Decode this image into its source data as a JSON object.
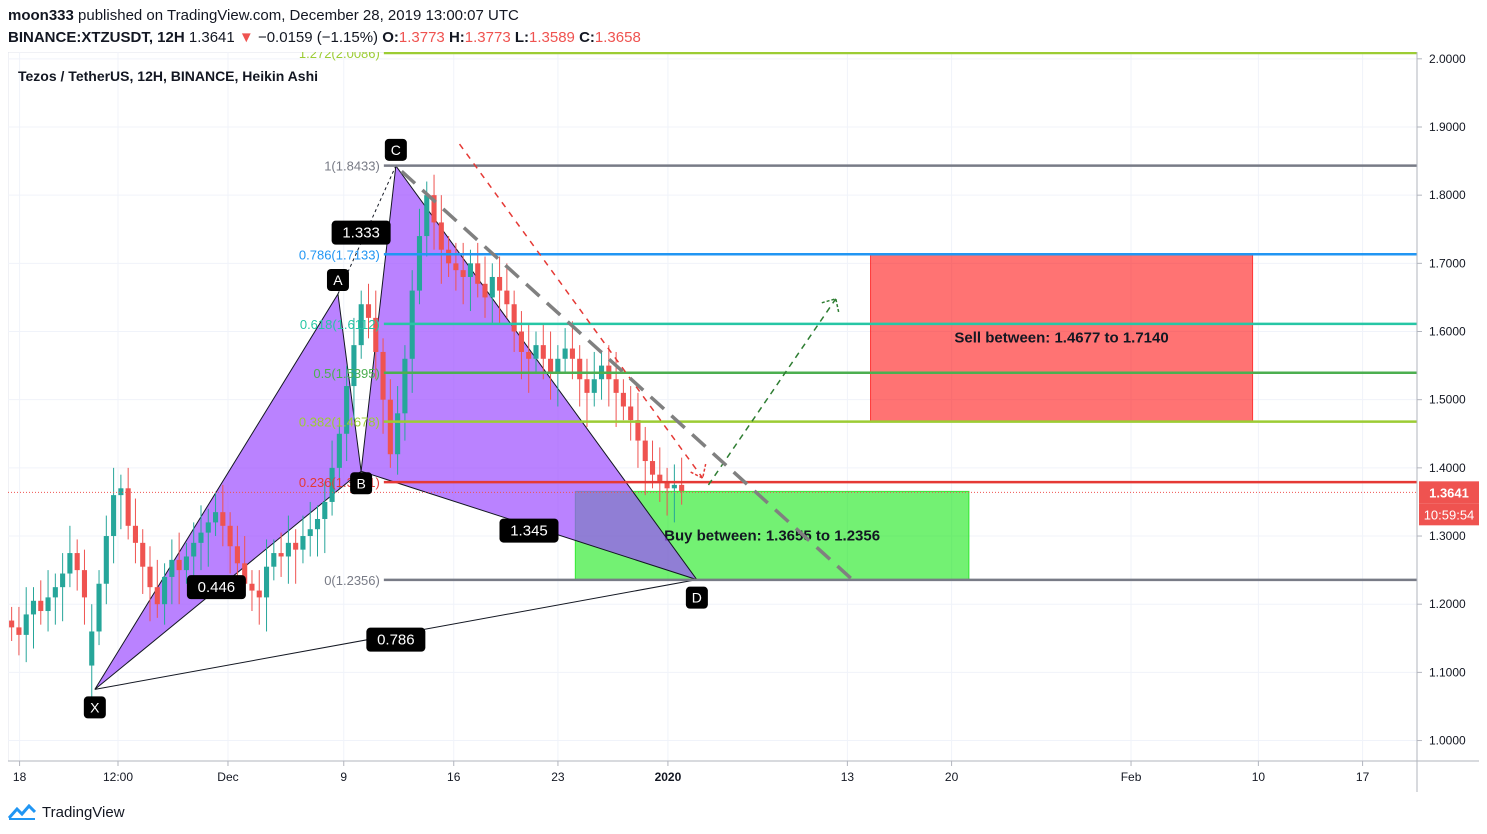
{
  "header": {
    "author": "moon333",
    "published_text": "published on TradingView.com, December 28, 2019 13:00:07 UTC",
    "symbol": "BINANCE:XTZUSDT, 12H",
    "price": "1.3641",
    "change_arrow": "▼",
    "change": "−0.0159 (−1.15%)",
    "o_label": "O:",
    "o_value": "1.3773",
    "h_label": "H:",
    "h_value": "1.3773",
    "l_label": "L:",
    "l_value": "1.3589",
    "c_label": "C:",
    "c_value": "1.3658"
  },
  "footer": {
    "brand": "TradingView"
  },
  "colors": {
    "up": "#26a69a",
    "down": "#ef5350",
    "harmonic_fill": "#9c4dff",
    "buy_zone": "#00e600",
    "sell_zone": "#ff0000"
  },
  "chart_data": {
    "type": "candlestick",
    "title": "Tezos / TetherUS, 12H, BINANCE, Heikin Ashi",
    "ylim": [
      0.97,
      2.01
    ],
    "x_ticks": [
      {
        "label": "18",
        "x": 0
      },
      {
        "label": "12:00",
        "x": 8.5
      },
      {
        "label": "Dec",
        "x": 18
      },
      {
        "label": "9",
        "x": 28
      },
      {
        "label": "16",
        "x": 37.5
      },
      {
        "label": "23",
        "x": 46.5
      },
      {
        "label": "2020",
        "x": 56
      },
      {
        "label": "13",
        "x": 71.5
      },
      {
        "label": "20",
        "x": 80.5
      },
      {
        "label": "Feb",
        "x": 96
      },
      {
        "label": "10",
        "x": 107
      },
      {
        "label": "17",
        "x": 116
      }
    ],
    "xlim": [
      -1,
      120.7
    ],
    "y_ticks": [
      "1.0000",
      "1.1000",
      "1.2000",
      "1.3000",
      "1.4000",
      "1.5000",
      "1.6000",
      "1.7000",
      "1.8000",
      "1.9000",
      "2.0000"
    ],
    "current_price": "1.3641",
    "countdown": "10:59:54",
    "fib_levels": [
      {
        "label": "0(1.2356)",
        "value": 1.2356,
        "color": "#787b86"
      },
      {
        "label": "0.236(1.3791)",
        "value": 1.3791,
        "color": "#f23645"
      },
      {
        "label": "0.382(1.4678)",
        "value": 1.4678,
        "color": "#81c784"
      },
      {
        "label": "0.5(1.5395)",
        "value": 1.5395,
        "color": "#4caf50"
      },
      {
        "label": "0.618(1.6112)",
        "value": 1.6112,
        "color": "#089981"
      },
      {
        "label": "0.786(1.7133)",
        "value": 1.7133,
        "color": "#2962ff"
      },
      {
        "label": "1(1.8433)",
        "value": 1.8433,
        "color": "#787b86"
      },
      {
        "label": "1.272(2.0086)",
        "value": 2.0086,
        "color": "#81c784"
      }
    ],
    "pattern_points": [
      {
        "label": "X",
        "x": 6.5,
        "y": 1.075
      },
      {
        "label": "A",
        "x": 27.5,
        "y": 1.655
      },
      {
        "label": "B",
        "x": 29.5,
        "y": 1.395
      },
      {
        "label": "C",
        "x": 32.5,
        "y": 1.843
      },
      {
        "label": "D",
        "x": 58.5,
        "y": 1.236
      }
    ],
    "ratios": [
      {
        "label": "0.446",
        "x": 17,
        "y": 1.225
      },
      {
        "label": "1.333",
        "x": 29.5,
        "y": 1.745
      },
      {
        "label": "1.345",
        "x": 44,
        "y": 1.308
      },
      {
        "label": "0.786",
        "x": 32.5,
        "y": 1.148
      }
    ],
    "zones": [
      {
        "label": "Buy between: 1.3655 to 1.2356",
        "x0": 48,
        "x1": 82,
        "y0": 1.2356,
        "y1": 1.3655
      },
      {
        "label": "Sell between: 1.4677 to 1.7140",
        "x0": 73.5,
        "x1": 106.5,
        "y0": 1.4677,
        "y1": 1.714
      }
    ],
    "projections": [
      {
        "style": "red-dashed",
        "from": [
          38,
          1.875
        ],
        "to": [
          59,
          1.385
        ]
      },
      {
        "style": "green-dashed",
        "from": [
          59.5,
          1.375
        ],
        "to": [
          70.5,
          1.648
        ]
      },
      {
        "style": "gray-dashed",
        "from": [
          33,
          1.835
        ],
        "to": [
          72,
          1.235
        ]
      }
    ],
    "candles": [
      [
        1.176,
        1.166
      ],
      [
        1.166,
        1.155
      ],
      [
        1.155,
        1.185
      ],
      [
        1.185,
        1.205
      ],
      [
        1.205,
        1.19
      ],
      [
        1.19,
        1.21
      ],
      [
        1.21,
        1.225
      ],
      [
        1.225,
        1.245
      ],
      [
        1.245,
        1.275
      ],
      [
        1.275,
        1.25
      ],
      [
        1.25,
        1.21
      ],
      [
        1.11,
        1.16
      ],
      [
        1.16,
        1.23
      ],
      [
        1.23,
        1.3
      ],
      [
        1.3,
        1.36
      ],
      [
        1.36,
        1.37
      ],
      [
        1.37,
        1.315
      ],
      [
        1.315,
        1.29
      ],
      [
        1.29,
        1.255
      ],
      [
        1.255,
        1.225
      ],
      [
        1.225,
        1.2
      ],
      [
        1.2,
        1.24
      ],
      [
        1.24,
        1.265
      ],
      [
        1.265,
        1.25
      ],
      [
        1.25,
        1.27
      ],
      [
        1.27,
        1.29
      ],
      [
        1.29,
        1.305
      ],
      [
        1.305,
        1.32
      ],
      [
        1.32,
        1.335
      ],
      [
        1.335,
        1.315
      ],
      [
        1.315,
        1.285
      ],
      [
        1.285,
        1.26
      ],
      [
        1.26,
        1.23
      ],
      [
        1.23,
        1.22
      ],
      [
        1.22,
        1.21
      ],
      [
        1.21,
        1.255
      ],
      [
        1.255,
        1.275
      ],
      [
        1.275,
        1.27
      ],
      [
        1.27,
        1.29
      ],
      [
        1.29,
        1.28
      ],
      [
        1.28,
        1.3
      ],
      [
        1.3,
        1.31
      ],
      [
        1.31,
        1.325
      ],
      [
        1.325,
        1.35
      ],
      [
        1.35,
        1.4
      ],
      [
        1.4,
        1.45
      ],
      [
        1.45,
        1.52
      ],
      [
        1.52,
        1.58
      ],
      [
        1.58,
        1.64
      ],
      [
        1.64,
        1.62
      ],
      [
        1.62,
        1.57
      ],
      [
        1.57,
        1.5
      ],
      [
        1.5,
        1.42
      ],
      [
        1.42,
        1.48
      ],
      [
        1.48,
        1.56
      ],
      [
        1.56,
        1.66
      ],
      [
        1.66,
        1.74
      ],
      [
        1.74,
        1.8
      ],
      [
        1.8,
        1.76
      ],
      [
        1.76,
        1.72
      ],
      [
        1.72,
        1.7
      ],
      [
        1.7,
        1.69
      ],
      [
        1.69,
        1.68
      ],
      [
        1.68,
        1.7
      ],
      [
        1.7,
        1.67
      ],
      [
        1.67,
        1.65
      ],
      [
        1.65,
        1.68
      ],
      [
        1.68,
        1.66
      ],
      [
        1.66,
        1.64
      ],
      [
        1.64,
        1.6
      ],
      [
        1.6,
        1.57
      ],
      [
        1.57,
        1.56
      ],
      [
        1.56,
        1.58
      ],
      [
        1.58,
        1.56
      ],
      [
        1.56,
        1.54
      ],
      [
        1.54,
        1.56
      ],
      [
        1.56,
        1.575
      ],
      [
        1.575,
        1.56
      ],
      [
        1.56,
        1.53
      ],
      [
        1.53,
        1.51
      ],
      [
        1.51,
        1.53
      ],
      [
        1.53,
        1.55
      ],
      [
        1.55,
        1.53
      ],
      [
        1.53,
        1.51
      ],
      [
        1.51,
        1.49
      ],
      [
        1.49,
        1.47
      ],
      [
        1.47,
        1.44
      ],
      [
        1.44,
        1.41
      ],
      [
        1.41,
        1.39
      ],
      [
        1.39,
        1.38
      ],
      [
        1.38,
        1.37
      ],
      [
        1.37,
        1.375
      ],
      [
        1.375,
        1.366
      ]
    ]
  }
}
